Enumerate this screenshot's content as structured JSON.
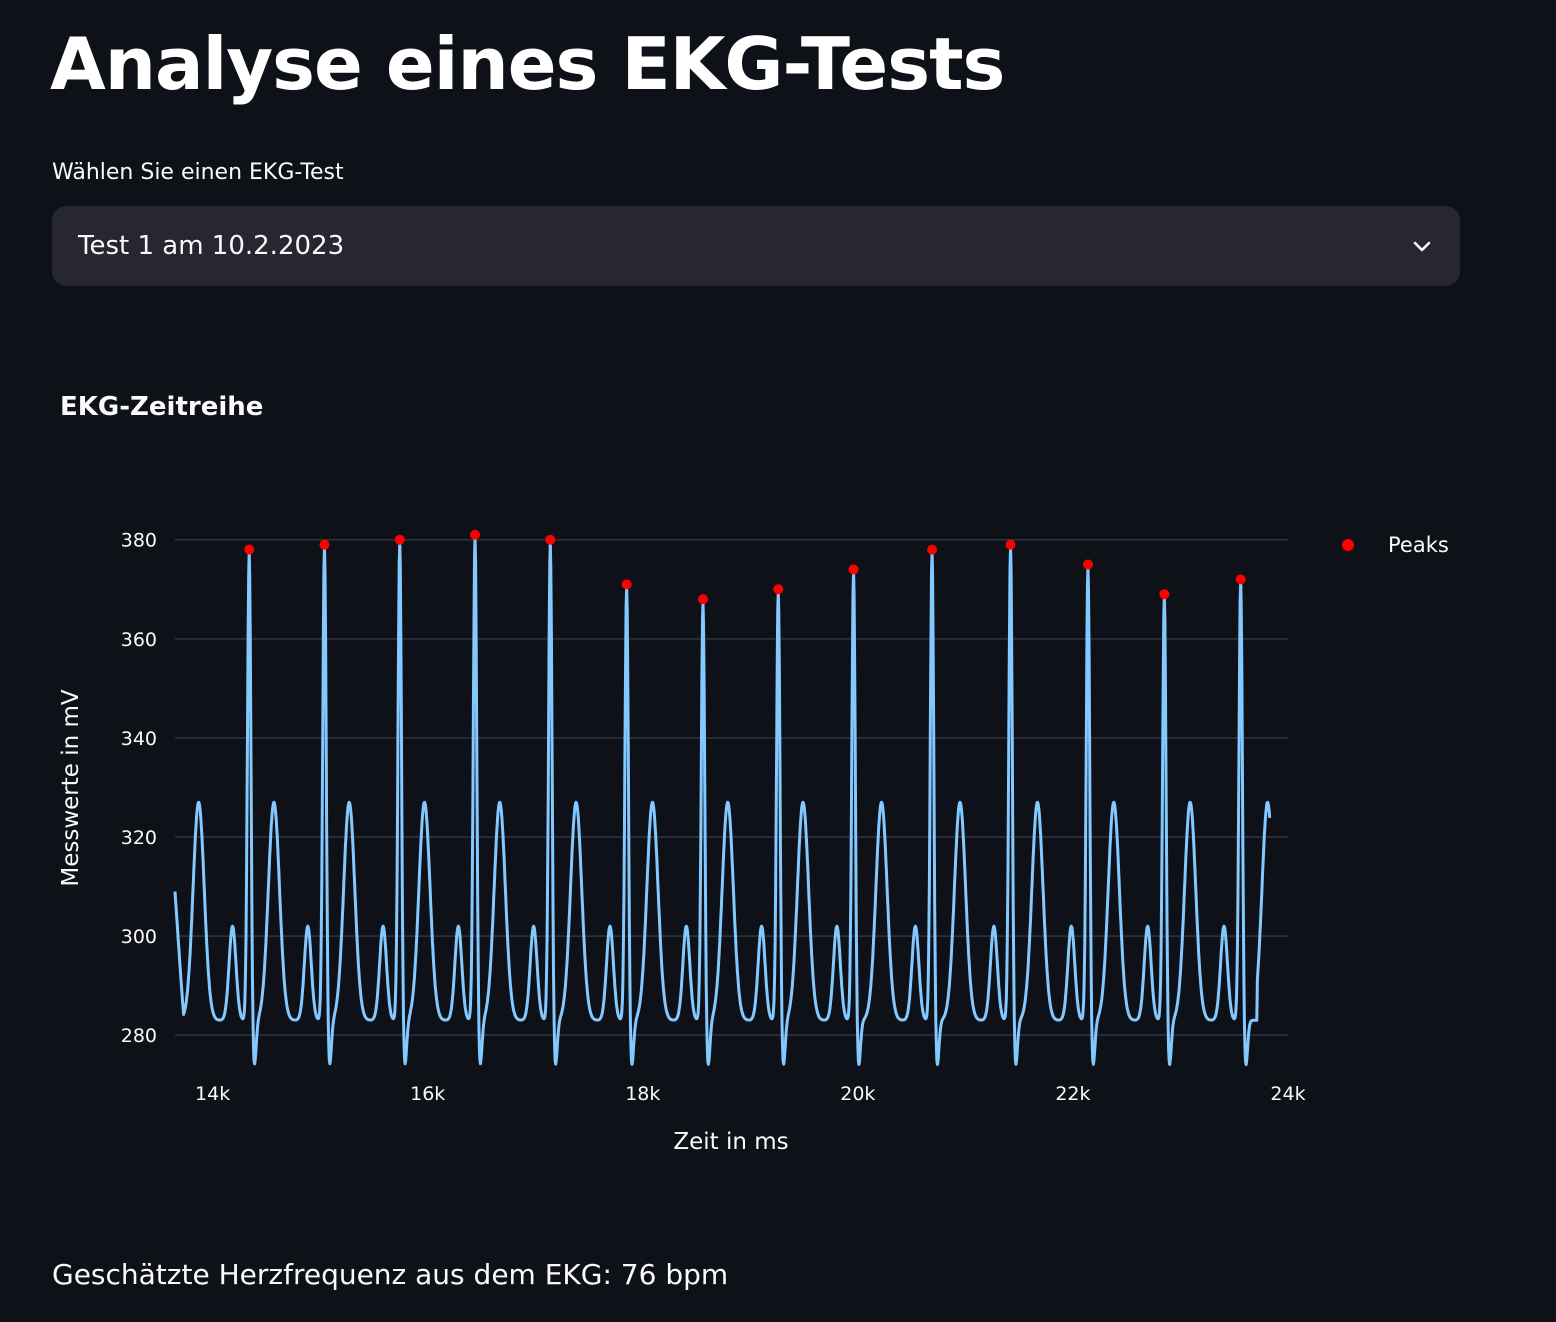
{
  "page": {
    "title": "Analyse eines EKG-Tests",
    "select_label": "Wählen Sie einen EKG-Test",
    "select_value": "Test 1 am 10.2.2023",
    "heart_rate_text": "Geschätzte Herzfrequenz aus dem EKG: 76 bpm"
  },
  "icons": {
    "select_chevron": "chevron-down-icon"
  },
  "chart_data": {
    "type": "line",
    "title": "EKG-Zeitreihe",
    "xlabel": "Zeit in ms",
    "ylabel": "Messwerte in mV",
    "xlim": [
      13650,
      24000
    ],
    "ylim": [
      276,
      386
    ],
    "xticks": [
      14000,
      16000,
      18000,
      20000,
      22000,
      24000
    ],
    "xtick_labels": [
      "14k",
      "16k",
      "18k",
      "20k",
      "22k",
      "24k"
    ],
    "yticks": [
      280,
      300,
      320,
      340,
      360,
      380
    ],
    "ytick_labels": [
      "280",
      "300",
      "320",
      "340",
      "360",
      "380"
    ],
    "grid": "horizontal",
    "legend_position": "top-right",
    "colors": {
      "signal": "#83c9ff",
      "peaks": "#ff0000",
      "grid": "#31333f"
    },
    "signal": {
      "name": "",
      "start_x": 13650,
      "end_x": 23830,
      "start_y": 309,
      "end_y": 326,
      "p_wave_height": 302,
      "t_wave_height": 327,
      "baseline_low": 283
    },
    "series": [
      {
        "name": "Peaks",
        "x": [
          14340,
          15040,
          15740,
          16440,
          17140,
          17850,
          18560,
          19260,
          19960,
          20690,
          21420,
          22140,
          22850,
          23560
        ],
        "y": [
          378,
          379,
          380,
          381,
          380,
          371,
          368,
          370,
          374,
          378,
          379,
          375,
          369,
          372
        ]
      }
    ]
  }
}
